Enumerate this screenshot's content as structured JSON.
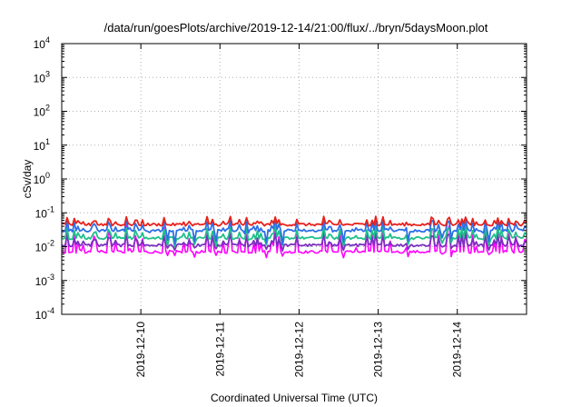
{
  "chart_data": {
    "type": "line",
    "title": "/data/run/goesPlots/archive/2019-12-14/21:00/flux/../bryn/5daysMoon.plot",
    "xlabel": "Coordinated Universal Time (UTC)",
    "ylabel": "cSv/day",
    "yscale": "log",
    "ylim": [
      0.0001,
      10000
    ],
    "yticks": [
      {
        "base": "10",
        "exp": "-4"
      },
      {
        "base": "10",
        "exp": "-3"
      },
      {
        "base": "10",
        "exp": "-2"
      },
      {
        "base": "10",
        "exp": "-1"
      },
      {
        "base": "10",
        "exp": "0"
      },
      {
        "base": "10",
        "exp": "1"
      },
      {
        "base": "10",
        "exp": "2"
      },
      {
        "base": "10",
        "exp": "3"
      },
      {
        "base": "10",
        "exp": "4"
      }
    ],
    "xlim": [
      "2019-12-09T00:00",
      "2019-12-14T21:00"
    ],
    "xticks": [
      "2019-12-10",
      "2019-12-11",
      "2019-12-12",
      "2019-12-13",
      "2019-12-14"
    ],
    "grid": true,
    "series": [
      {
        "color": "#e8211c",
        "approx_baseline": 0.045,
        "approx_range": [
          0.04,
          0.09
        ]
      },
      {
        "color": "#2c6fe6",
        "approx_baseline": 0.03,
        "approx_range": [
          0.012,
          0.08
        ]
      },
      {
        "color": "#1fbf8a",
        "approx_baseline": 0.018,
        "approx_range": [
          0.01,
          0.05
        ]
      },
      {
        "color": "#7b2fbf",
        "approx_baseline": 0.011,
        "approx_range": [
          0.008,
          0.03
        ]
      },
      {
        "color": "#ff00ff",
        "approx_baseline": 0.007,
        "approx_range": [
          0.005,
          0.05
        ]
      }
    ]
  }
}
